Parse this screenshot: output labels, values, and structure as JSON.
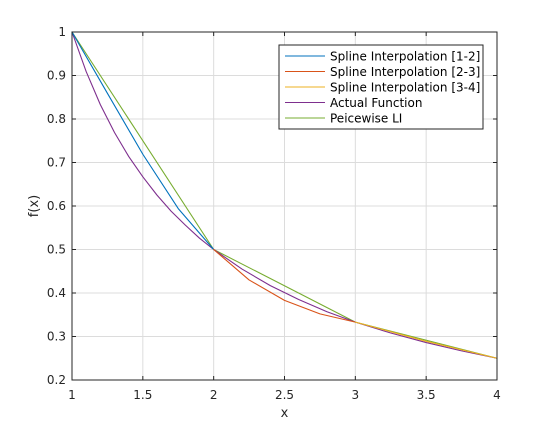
{
  "chart_data": {
    "type": "line",
    "title": "",
    "xlabel": "x",
    "ylabel": "f(x)",
    "xlim": [
      1,
      4
    ],
    "ylim": [
      0.2,
      1
    ],
    "xticks": [
      1,
      1.5,
      2,
      2.5,
      3,
      3.5,
      4
    ],
    "xtick_labels": [
      "1",
      "1.5",
      "2",
      "2.5",
      "3",
      "3.5",
      "4"
    ],
    "yticks": [
      0.2,
      0.3,
      0.4,
      0.5,
      0.6,
      0.7,
      0.8,
      0.9,
      1
    ],
    "ytick_labels": [
      "0.2",
      "0.3",
      "0.4",
      "0.5",
      "0.6",
      "0.7",
      "0.8",
      "0.9",
      "1"
    ],
    "grid": true,
    "legend_position": "top-right",
    "series": [
      {
        "name": "Spline Interpolation [1-2]",
        "color": "#0072BD",
        "x": [
          1,
          1.25,
          1.5,
          1.75,
          2
        ],
        "y": [
          1,
          0.859,
          0.719,
          0.594,
          0.5
        ]
      },
      {
        "name": "Spline Interpolation [2-3]",
        "color": "#D95319",
        "x": [
          2,
          2.25,
          2.5,
          2.75,
          3
        ],
        "y": [
          0.5,
          0.43,
          0.383,
          0.352,
          0.333
        ]
      },
      {
        "name": "Spline Interpolation [3-4]",
        "color": "#EDB120",
        "x": [
          3,
          3.5,
          4
        ],
        "y": [
          0.333,
          0.289,
          0.25
        ]
      },
      {
        "name": "Actual Function",
        "color": "#7E2F8E",
        "x": [
          1,
          1.1,
          1.2,
          1.3,
          1.4,
          1.5,
          1.6,
          1.7,
          1.8,
          1.9,
          2,
          2.2,
          2.4,
          2.6,
          2.8,
          3,
          3.25,
          3.5,
          3.75,
          4
        ],
        "y": [
          1,
          0.909,
          0.833,
          0.769,
          0.714,
          0.667,
          0.625,
          0.588,
          0.556,
          0.526,
          0.5,
          0.455,
          0.417,
          0.385,
          0.357,
          0.333,
          0.308,
          0.286,
          0.267,
          0.25
        ]
      },
      {
        "name": "Peicewise LI",
        "color": "#77AC30",
        "x": [
          1,
          2,
          3,
          4
        ],
        "y": [
          1,
          0.5,
          0.333,
          0.25
        ]
      }
    ]
  }
}
